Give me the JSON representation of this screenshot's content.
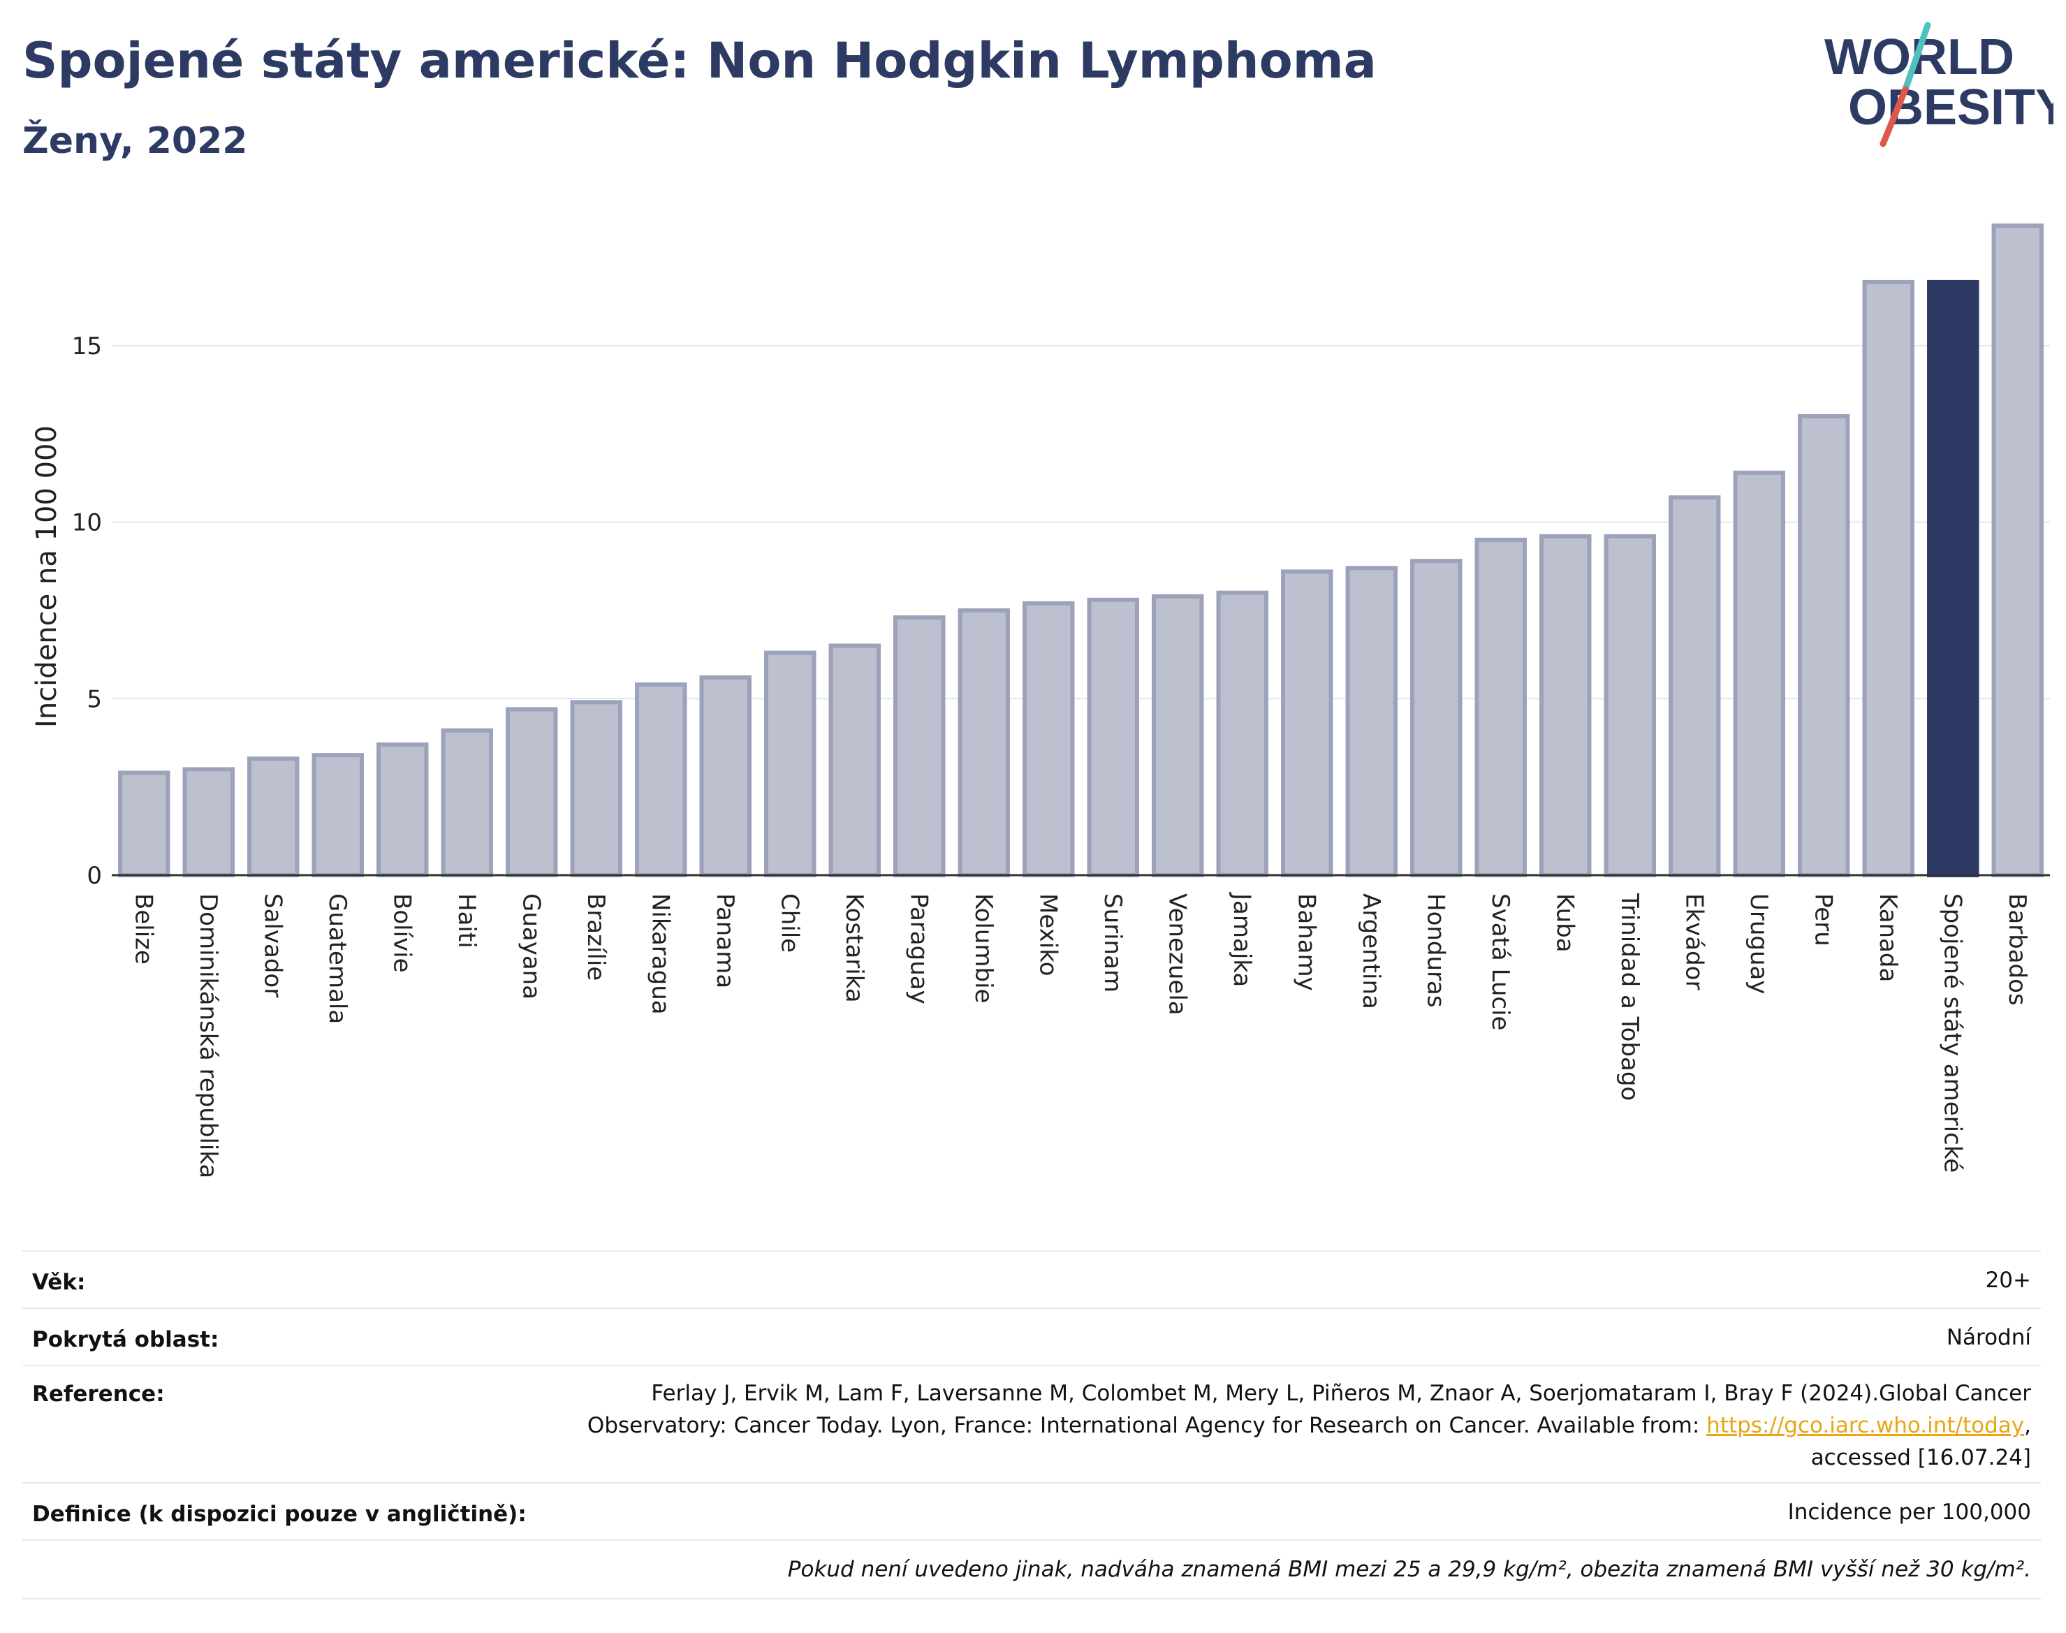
{
  "header": {
    "title": "Spojené státy americké: Non Hodgkin Lymphoma",
    "subtitle": "Ženy, 2022",
    "logo_text_line1": "WORLD",
    "logo_text_line2": "OBESITY"
  },
  "colors": {
    "title": "#2d3a63",
    "bar_default": "#bcc0cf",
    "bar_default_border": "#9ca2b9",
    "bar_highlight": "#2d3a63",
    "logo_teal": "#4fc1c1",
    "logo_red": "#e2574c"
  },
  "chart_data": {
    "type": "bar",
    "title": "Spojené státy americké: Non Hodgkin Lymphoma",
    "subtitle": "Ženy, 2022",
    "xlabel": "",
    "ylabel": "Incidence na 100 000",
    "ylim": [
      0,
      18.5
    ],
    "yticks": [
      0,
      5,
      10,
      15
    ],
    "grid": true,
    "highlight": "Spojené státy americké",
    "categories": [
      "Belize",
      "Dominikánská republika",
      "Salvador",
      "Guatemala",
      "Bolívie",
      "Haiti",
      "Guayana",
      "Brazílie",
      "Nikaragua",
      "Panama",
      "Chile",
      "Kostarika",
      "Paraguay",
      "Kolumbie",
      "Mexiko",
      "Surinam",
      "Venezuela",
      "Jamajka",
      "Bahamy",
      "Argentina",
      "Honduras",
      "Svatá Lucie",
      "Kuba",
      "Trinidad a Tobago",
      "Ekvádor",
      "Uruguay",
      "Peru",
      "Kanada",
      "Spojené státy americké",
      "Barbados"
    ],
    "values": [
      2.9,
      3.0,
      3.3,
      3.4,
      3.7,
      4.1,
      4.7,
      4.9,
      5.4,
      5.6,
      6.3,
      6.5,
      7.3,
      7.5,
      7.7,
      7.8,
      7.9,
      8.0,
      8.6,
      8.7,
      8.9,
      9.5,
      9.6,
      9.6,
      10.7,
      11.4,
      13.0,
      16.8,
      16.8,
      18.4
    ]
  },
  "meta": {
    "age_label": "Věk:",
    "age_value": "20+",
    "area_label": "Pokrytá oblast:",
    "area_value": "Národní",
    "reference_label": "Reference:",
    "reference_line1": "Ferlay J, Ervik M, Lam F, Laversanne M, Colombet M, Mery L, Piñeros M, Znaor A, Soerjomataram I, Bray F (2024).Global Cancer",
    "reference_line2_prefix": "Observatory: Cancer Today. Lyon, France: International Agency for Research on Cancer. Available from: ",
    "reference_link": "https://gco.iarc.who.int/today",
    "reference_line2_suffix": ",",
    "reference_line3": "accessed [16.07.24]",
    "definition_label": "Definice (k dispozici pouze v angličtině):",
    "definition_value": "Incidence per 100,000",
    "note": "Pokud není uvedeno jinak, nadváha znamená BMI mezi 25 a 29,9 kg/m², obezita znamená BMI vyšší než 30 kg/m²."
  }
}
